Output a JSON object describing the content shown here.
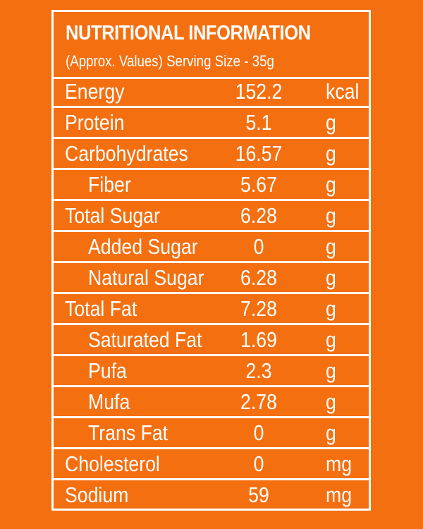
{
  "panel": {
    "title": "NUTRITIONAL INFORMATION",
    "subtitle": "(Approx. Values) Serving Size - 35g"
  },
  "rows": [
    {
      "name": "Energy",
      "value": "152.2",
      "unit": "kcal",
      "indent": false
    },
    {
      "name": "Protein",
      "value": "5.1",
      "unit": "g",
      "indent": false
    },
    {
      "name": "Carbohydrates",
      "value": "16.57",
      "unit": "g",
      "indent": false
    },
    {
      "name": "Fiber",
      "value": "5.67",
      "unit": "g",
      "indent": true
    },
    {
      "name": "Total Sugar",
      "value": "6.28",
      "unit": "g",
      "indent": false
    },
    {
      "name": "Added Sugar",
      "value": "0",
      "unit": "g",
      "indent": true
    },
    {
      "name": "Natural Sugar",
      "value": "6.28",
      "unit": "g",
      "indent": true
    },
    {
      "name": "Total Fat",
      "value": "7.28",
      "unit": "g",
      "indent": false
    },
    {
      "name": "Saturated Fat",
      "value": "1.69",
      "unit": "g",
      "indent": true
    },
    {
      "name": "Pufa",
      "value": "2.3",
      "unit": "g",
      "indent": true
    },
    {
      "name": "Mufa",
      "value": "2.78",
      "unit": "g",
      "indent": true
    },
    {
      "name": "Trans Fat",
      "value": "0",
      "unit": "g",
      "indent": true
    },
    {
      "name": "Cholesterol",
      "value": "0",
      "unit": "mg",
      "indent": false
    },
    {
      "name": "Sodium",
      "value": "59",
      "unit": "mg",
      "indent": false
    }
  ],
  "colors": {
    "background": "#f46f10",
    "text": "#ffffff",
    "lines": "#ffffff"
  }
}
